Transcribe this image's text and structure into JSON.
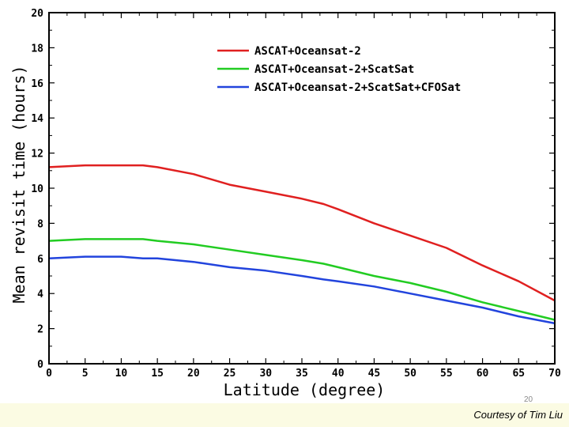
{
  "page": {
    "number": "20",
    "credit": "Courtesy of Tim Liu"
  },
  "chart_data": {
    "type": "line",
    "title": "",
    "xlabel": "Latitude (degree)",
    "ylabel": "Mean revisit time (hours)",
    "xlim": [
      0,
      70
    ],
    "ylim": [
      0,
      20
    ],
    "xticks": [
      0,
      5,
      10,
      15,
      20,
      25,
      30,
      35,
      40,
      45,
      50,
      55,
      60,
      65,
      70
    ],
    "yticks": [
      0,
      2,
      4,
      6,
      8,
      10,
      12,
      14,
      16,
      18,
      20
    ],
    "grid": false,
    "legend_position": "top-right",
    "x": [
      0,
      5,
      10,
      13,
      15,
      20,
      25,
      30,
      35,
      38,
      40,
      45,
      50,
      55,
      60,
      65,
      70
    ],
    "series": [
      {
        "name": "ASCAT+Oceansat-2",
        "color": "#e02020",
        "values": [
          11.2,
          11.3,
          11.3,
          11.3,
          11.2,
          10.8,
          10.2,
          9.8,
          9.4,
          9.1,
          8.8,
          8.0,
          7.3,
          6.6,
          5.6,
          4.7,
          3.6
        ]
      },
      {
        "name": "ASCAT+Oceansat-2+ScatSat",
        "color": "#22cc22",
        "values": [
          7.0,
          7.1,
          7.1,
          7.1,
          7.0,
          6.8,
          6.5,
          6.2,
          5.9,
          5.7,
          5.5,
          5.0,
          4.6,
          4.1,
          3.5,
          3.0,
          2.5
        ]
      },
      {
        "name": "ASCAT+Oceansat-2+ScatSat+CFOSat",
        "color": "#2244dd",
        "values": [
          6.0,
          6.1,
          6.1,
          6.0,
          6.0,
          5.8,
          5.5,
          5.3,
          5.0,
          4.8,
          4.7,
          4.4,
          4.0,
          3.6,
          3.2,
          2.7,
          2.3
        ]
      }
    ]
  }
}
